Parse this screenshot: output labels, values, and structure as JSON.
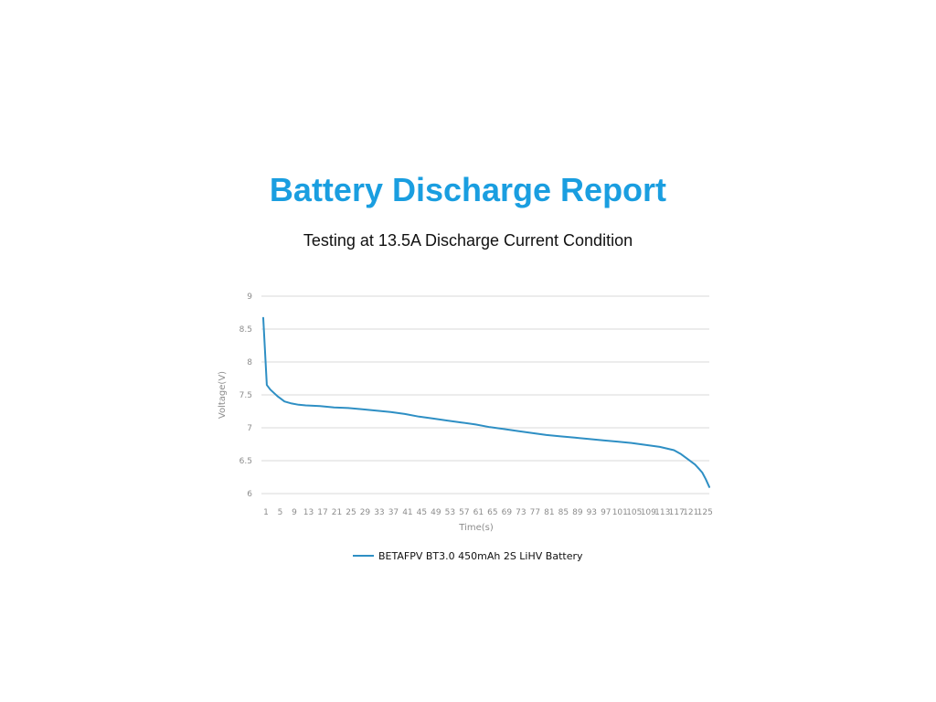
{
  "report": {
    "title": "Battery Discharge Report",
    "subtitle": "Testing at 13.5A Discharge Current Condition"
  },
  "colors": {
    "title": "#1a9ee0",
    "series": "#2e8fc4",
    "grid": "#d9d9d9"
  },
  "chart_data": {
    "type": "line",
    "xlabel": "Time(s)",
    "ylabel": "Voltage(V)",
    "xlim": [
      1,
      127
    ],
    "ylim": [
      6,
      9
    ],
    "x_ticks": [
      1,
      5,
      9,
      13,
      17,
      21,
      25,
      29,
      33,
      37,
      41,
      45,
      49,
      53,
      57,
      61,
      65,
      69,
      73,
      77,
      81,
      85,
      89,
      93,
      97,
      101,
      105,
      109,
      113,
      117,
      121,
      125
    ],
    "y_ticks": [
      "6",
      "6.5",
      "7",
      "7.5",
      "8",
      "8.5",
      "9"
    ],
    "grid": true,
    "legend_position": "bottom",
    "series": [
      {
        "name": "BETAFPV BT3.0 450mAh 2S LiHV Battery",
        "x": [
          1,
          2,
          3,
          4,
          5,
          6,
          7,
          9,
          11,
          13,
          17,
          21,
          25,
          29,
          33,
          37,
          41,
          45,
          49,
          53,
          57,
          61,
          65,
          69,
          73,
          77,
          81,
          85,
          89,
          93,
          97,
          101,
          105,
          109,
          113,
          117,
          119,
          121,
          123,
          124,
          125,
          126,
          127
        ],
        "y": [
          8.67,
          7.65,
          7.58,
          7.53,
          7.48,
          7.44,
          7.4,
          7.37,
          7.35,
          7.34,
          7.33,
          7.31,
          7.3,
          7.28,
          7.26,
          7.24,
          7.21,
          7.17,
          7.14,
          7.11,
          7.08,
          7.05,
          7.01,
          6.98,
          6.95,
          6.92,
          6.89,
          6.87,
          6.85,
          6.83,
          6.81,
          6.79,
          6.77,
          6.74,
          6.71,
          6.66,
          6.6,
          6.52,
          6.44,
          6.38,
          6.32,
          6.22,
          6.1
        ]
      }
    ]
  }
}
